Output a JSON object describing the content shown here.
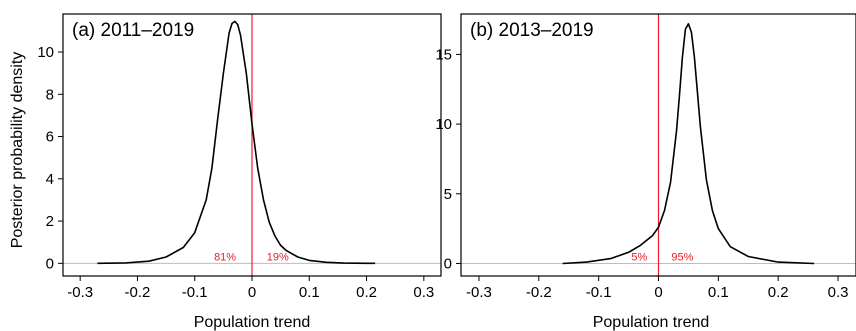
{
  "figure": {
    "ylabel": "Posterior probability density",
    "colors": {
      "curve": "#000000",
      "zero_line": "#e8202a",
      "baseline": "#bdbdbd",
      "percent_text": "#e8202a"
    }
  },
  "chart_data": [
    {
      "type": "line",
      "title": "(a) 2011–2019",
      "xlabel": "Population trend",
      "ylabel": "Posterior probability density",
      "xlim": [
        -0.33,
        0.33
      ],
      "ylim": [
        -0.6,
        11.8
      ],
      "xticks": [
        "-0.3",
        "-0.2",
        "-0.1",
        "0",
        "0.1",
        "0.2",
        "0.3"
      ],
      "xtick_values": [
        -0.3,
        -0.2,
        -0.1,
        0,
        0.1,
        0.2,
        0.3
      ],
      "yticks": [
        "0",
        "2",
        "4",
        "6",
        "8",
        "10"
      ],
      "ytick_values": [
        0,
        2,
        4,
        6,
        8,
        10
      ],
      "series": [
        {
          "x": [
            -0.27,
            -0.22,
            -0.18,
            -0.15,
            -0.12,
            -0.1,
            -0.08,
            -0.07,
            -0.06,
            -0.05,
            -0.04,
            -0.035,
            -0.03,
            -0.025,
            -0.02,
            -0.01,
            0.0,
            0.01,
            0.02,
            0.03,
            0.04,
            0.05,
            0.06,
            0.08,
            0.1,
            0.13,
            0.16,
            0.2,
            0.215
          ],
          "y": [
            0.0,
            0.02,
            0.1,
            0.3,
            0.75,
            1.45,
            3.0,
            4.5,
            6.8,
            9.0,
            10.9,
            11.35,
            11.45,
            11.3,
            10.8,
            9.0,
            6.6,
            4.5,
            3.0,
            1.95,
            1.3,
            0.85,
            0.6,
            0.3,
            0.14,
            0.05,
            0.01,
            0.0,
            0.0
          ]
        }
      ],
      "zero_line_x": 0,
      "annotations": [
        {
          "text": "81%",
          "x": -0.047,
          "y": 0.0
        },
        {
          "text": "19%",
          "x": 0.045,
          "y": 0.0
        }
      ]
    },
    {
      "type": "line",
      "title": "(b) 2013–2019",
      "xlabel": "Population trend",
      "ylabel": "",
      "xlim": [
        -0.33,
        0.33
      ],
      "ylim": [
        -0.9,
        17.9
      ],
      "xticks": [
        "-0.3",
        "-0.2",
        "-0.1",
        "0",
        "0.1",
        "0.2",
        "0.3"
      ],
      "xtick_values": [
        -0.3,
        -0.2,
        -0.1,
        0,
        0.1,
        0.2,
        0.3
      ],
      "yticks": [
        "0",
        "5",
        "10",
        "15"
      ],
      "ytick_values": [
        0,
        5,
        10,
        15
      ],
      "series": [
        {
          "x": [
            -0.16,
            -0.12,
            -0.08,
            -0.05,
            -0.03,
            -0.01,
            0.0,
            0.01,
            0.02,
            0.03,
            0.035,
            0.04,
            0.045,
            0.05,
            0.055,
            0.06,
            0.065,
            0.07,
            0.08,
            0.09,
            0.1,
            0.12,
            0.15,
            0.2,
            0.26
          ],
          "y": [
            0.0,
            0.1,
            0.35,
            0.8,
            1.3,
            2.0,
            2.6,
            3.8,
            5.8,
            9.5,
            12.0,
            14.8,
            16.8,
            17.2,
            16.6,
            14.8,
            12.3,
            9.8,
            6.0,
            3.8,
            2.5,
            1.2,
            0.5,
            0.1,
            0.0
          ]
        }
      ],
      "zero_line_x": 0,
      "annotations": [
        {
          "text": "5%",
          "x": -0.032,
          "y": 0.0
        },
        {
          "text": "95%",
          "x": 0.04,
          "y": 0.0
        }
      ]
    }
  ]
}
